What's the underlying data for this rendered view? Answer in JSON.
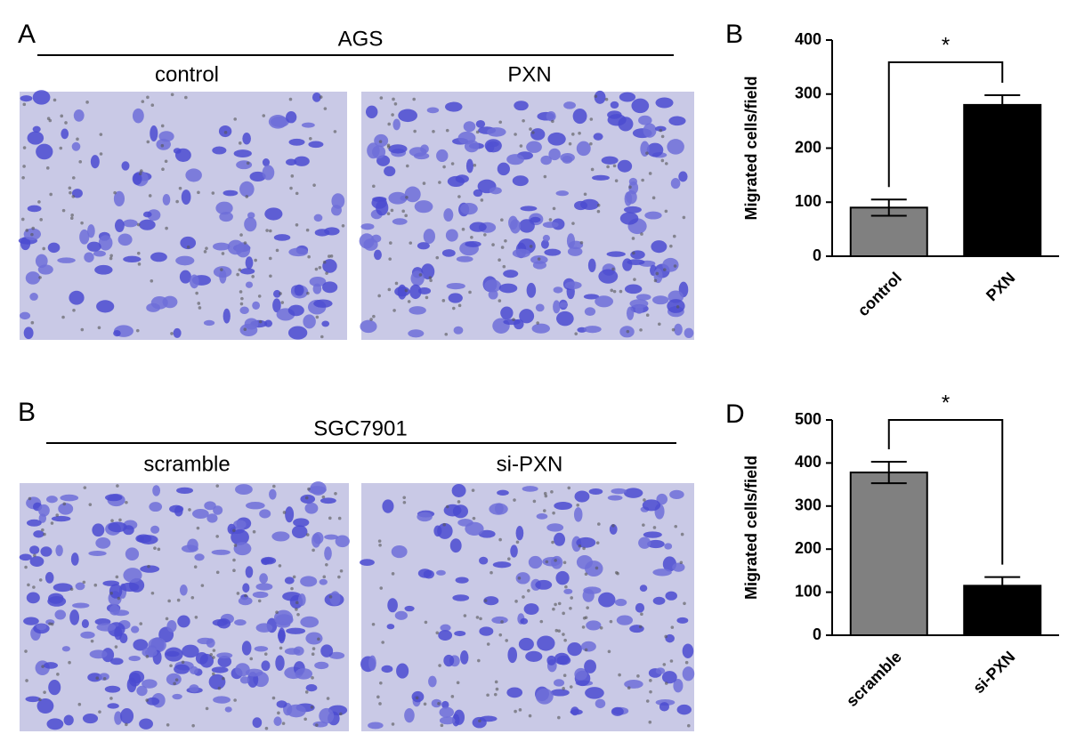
{
  "panels": [
    {
      "label": "A",
      "title": "AGS",
      "columns": [
        "control",
        "PXN"
      ]
    },
    {
      "label": "B",
      "title": "SGC7901",
      "columns": [
        "scramble",
        "si-PXN"
      ]
    }
  ],
  "chart_data": [
    {
      "type": "bar",
      "panel_label": "B",
      "y_label": "Migrated cells/field",
      "categories": [
        "control",
        "PXN"
      ],
      "values": [
        90,
        280
      ],
      "errors": [
        15,
        18
      ],
      "colors": [
        "#808080",
        "#000000"
      ],
      "ylim": [
        0,
        400
      ],
      "yticks": [
        0,
        100,
        200,
        300,
        400
      ],
      "annotation": "*"
    },
    {
      "type": "bar",
      "panel_label": "D",
      "y_label": "Migrated cells/field",
      "categories": [
        "scramble",
        "si-PXN"
      ],
      "values": [
        378,
        115
      ],
      "errors": [
        25,
        20
      ],
      "colors": [
        "#808080",
        "#000000"
      ],
      "ylim": [
        0,
        500
      ],
      "yticks": [
        0,
        100,
        200,
        300,
        400,
        500
      ],
      "annotation": "*"
    }
  ]
}
